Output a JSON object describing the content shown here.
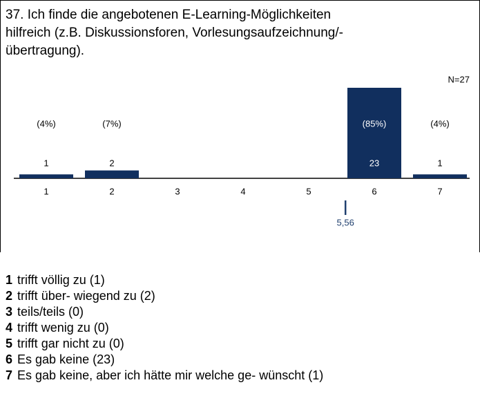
{
  "chart_data": {
    "type": "bar",
    "title_lines": [
      "37. Ich finde die angebotenen E-Learning-Möglichkeiten",
      "hilfreich (z.B. Diskussionsforen, Vorlesungsaufzeichnung/-",
      "übertragung)."
    ],
    "n_label": "N=27",
    "categories": [
      "1",
      "2",
      "3",
      "4",
      "5",
      "6",
      "7"
    ],
    "values": [
      1,
      2,
      0,
      0,
      0,
      23,
      1
    ],
    "percent_labels": [
      "(4%)",
      "(7%)",
      null,
      null,
      null,
      "(85%)",
      "(4%)"
    ],
    "color": "#112f5e",
    "mean": {
      "value": 5.56,
      "label": "5,56"
    },
    "legend": [
      {
        "number": "1",
        "text": "trifft völlig zu  (1)"
      },
      {
        "number": "2",
        "text": "trifft über- wiegend zu  (2)"
      },
      {
        "number": "3",
        "text": "teils/teils  (0)"
      },
      {
        "number": "4",
        "text": "trifft wenig zu  (0)"
      },
      {
        "number": "5",
        "text": "trifft gar nicht zu  (0)"
      },
      {
        "number": "6",
        "text": "Es gab keine (23)"
      },
      {
        "number": "7",
        "text": "Es gab keine, aber ich hätte mir welche ge- wünscht (1)"
      }
    ]
  }
}
